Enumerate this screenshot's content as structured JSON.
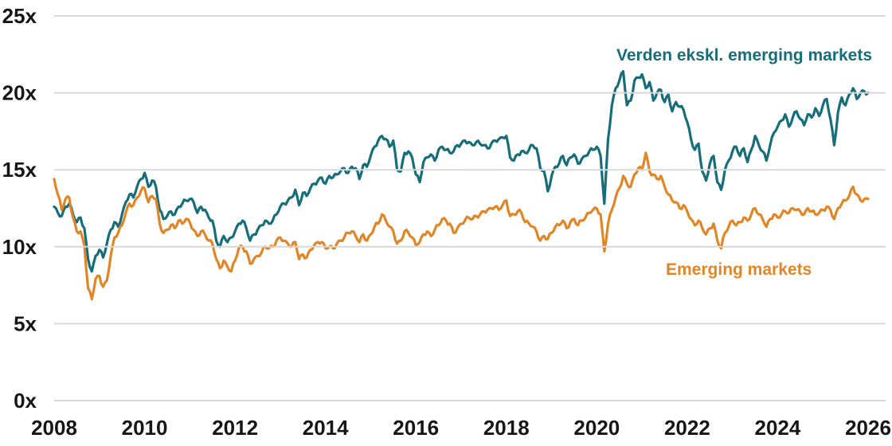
{
  "page": {
    "background": "#FFFFFF"
  },
  "chart_data": {
    "type": "line",
    "title": "",
    "xlabel": "",
    "ylabel": "",
    "grid": {
      "color": "#D8D8D8",
      "drawn_on_top": true
    },
    "axis_label_color": "#161616",
    "x_axis": {
      "ticks": [
        2008,
        2010,
        2012,
        2014,
        2016,
        2018,
        2020,
        2022,
        2024,
        2026
      ]
    },
    "y_axis": {
      "min": 0,
      "max": 25,
      "suffix": "x",
      "ticks": [
        {
          "value": 25,
          "label": "25x"
        },
        {
          "value": 20,
          "label": "20x"
        },
        {
          "value": 15,
          "label": "15x"
        },
        {
          "value": 10,
          "label": "10x"
        },
        {
          "value": 5,
          "label": "5x"
        },
        {
          "value": 0,
          "label": "0x"
        }
      ]
    },
    "x_start_year": 2008,
    "points_per_year": 12,
    "legend_position": "inline-annotations",
    "series": [
      {
        "name": "Verden ekskl. emerging markets",
        "color": "#176E7B",
        "values": [
          12.6,
          12.2,
          12.0,
          12.6,
          12.8,
          12.1,
          11.6,
          11.9,
          11.2,
          9.2,
          8.4,
          9.4,
          9.8,
          9.3,
          10.2,
          11.1,
          11.6,
          11.3,
          12.1,
          12.9,
          13.4,
          13.2,
          13.9,
          14.4,
          14.8,
          13.9,
          14.3,
          13.9,
          12.4,
          11.8,
          12.0,
          12.3,
          12.1,
          12.6,
          12.8,
          13.0,
          13.1,
          12.9,
          12.2,
          12.6,
          12.4,
          11.9,
          11.7,
          10.4,
          10.0,
          10.7,
          10.3,
          10.6,
          11.0,
          11.5,
          11.7,
          11.2,
          10.4,
          10.8,
          11.1,
          11.4,
          11.7,
          11.5,
          11.7,
          12.1,
          12.6,
          12.8,
          13.0,
          13.2,
          13.7,
          12.7,
          13.5,
          13.3,
          13.8,
          14.1,
          14.3,
          14.5,
          14.1,
          14.6,
          14.5,
          14.7,
          14.9,
          15.1,
          14.8,
          15.2,
          15.1,
          14.4,
          15.3,
          15.2,
          15.9,
          16.5,
          16.9,
          17.2,
          17.0,
          16.5,
          16.9,
          15.0,
          14.9,
          16.1,
          16.2,
          15.8,
          14.7,
          14.2,
          15.5,
          15.8,
          16.0,
          15.6,
          16.3,
          16.5,
          16.3,
          16.1,
          16.2,
          16.6,
          16.7,
          16.9,
          16.8,
          16.6,
          16.8,
          16.7,
          16.6,
          16.4,
          16.7,
          16.9,
          17.0,
          17.1,
          17.2,
          15.8,
          15.6,
          16.0,
          16.2,
          16.1,
          16.3,
          16.6,
          16.4,
          15.1,
          14.9,
          13.6,
          14.6,
          15.2,
          15.4,
          15.9,
          15.3,
          15.8,
          16.0,
          15.4,
          15.7,
          15.9,
          16.2,
          16.3,
          16.5,
          15.9,
          12.8,
          17.0,
          19.2,
          20.3,
          20.8,
          21.4,
          19.2,
          19.5,
          20.8,
          21.0,
          21.2,
          20.3,
          20.7,
          19.5,
          20.0,
          20.2,
          19.4,
          19.9,
          18.8,
          19.4,
          19.1,
          18.9,
          18.1,
          17.0,
          16.3,
          16.7,
          14.9,
          14.3,
          15.4,
          15.9,
          14.2,
          13.7,
          15.0,
          15.6,
          16.2,
          16.5,
          15.9,
          16.4,
          15.5,
          16.3,
          17.2,
          16.6,
          16.2,
          15.6,
          16.6,
          17.4,
          17.8,
          18.2,
          18.6,
          17.8,
          18.4,
          18.8,
          18.3,
          17.9,
          18.6,
          18.4,
          19.0,
          18.5,
          19.2,
          19.6,
          18.3,
          16.6,
          18.7,
          19.7,
          19.2,
          19.9,
          20.3,
          19.6,
          20.0,
          20.1,
          20.0
        ]
      },
      {
        "name": "Emerging markets",
        "color": "#E08627",
        "values": [
          14.4,
          13.4,
          12.4,
          13.1,
          13.2,
          11.9,
          11.0,
          11.0,
          10.1,
          7.3,
          6.6,
          7.9,
          8.1,
          7.4,
          7.8,
          9.4,
          10.6,
          10.9,
          11.4,
          12.2,
          12.8,
          12.7,
          13.2,
          13.6,
          13.8,
          12.9,
          13.3,
          13.1,
          11.5,
          10.9,
          11.1,
          11.4,
          11.2,
          11.7,
          11.5,
          11.8,
          11.6,
          11.1,
          10.7,
          11.0,
          10.8,
          10.4,
          10.2,
          9.2,
          8.6,
          9.1,
          8.7,
          8.4,
          9.1,
          9.9,
          10.0,
          9.7,
          8.9,
          9.2,
          9.4,
          9.6,
          10.0,
          9.9,
          10.0,
          10.4,
          10.6,
          10.4,
          10.2,
          10.0,
          10.3,
          9.2,
          9.5,
          9.3,
          9.8,
          10.1,
          10.3,
          10.3,
          9.9,
          10.0,
          9.9,
          10.2,
          10.4,
          10.6,
          10.9,
          11.0,
          10.7,
          10.3,
          10.8,
          10.4,
          10.8,
          11.3,
          11.5,
          12.1,
          11.7,
          11.3,
          11.0,
          10.2,
          10.4,
          11.0,
          10.9,
          10.6,
          10.1,
          10.3,
          10.8,
          11.0,
          10.7,
          11.1,
          11.4,
          11.8,
          11.7,
          11.5,
          10.9,
          11.2,
          11.5,
          11.7,
          11.9,
          11.8,
          12.0,
          12.1,
          12.3,
          12.4,
          12.5,
          12.6,
          12.4,
          12.7,
          13.0,
          12.0,
          12.1,
          12.3,
          12.2,
          11.6,
          11.5,
          11.3,
          11.0,
          10.4,
          10.7,
          10.5,
          10.9,
          11.3,
          11.4,
          11.7,
          11.2,
          11.6,
          11.8,
          11.4,
          11.7,
          11.9,
          12.2,
          12.4,
          12.5,
          12.1,
          9.7,
          11.5,
          12.4,
          13.2,
          13.8,
          14.6,
          14.1,
          13.9,
          14.7,
          15.1,
          15.0,
          16.1,
          14.9,
          14.7,
          14.4,
          14.6,
          13.9,
          13.4,
          13.0,
          12.9,
          12.5,
          12.7,
          12.3,
          11.8,
          11.4,
          11.7,
          11.2,
          10.8,
          11.2,
          11.5,
          10.4,
          9.9,
          10.9,
          11.3,
          11.7,
          11.4,
          11.6,
          11.9,
          11.7,
          12.1,
          12.5,
          12.1,
          11.8,
          11.3,
          11.8,
          12.1,
          11.9,
          12.1,
          12.3,
          12.2,
          12.5,
          12.4,
          12.3,
          12.1,
          12.5,
          12.3,
          12.1,
          12.2,
          12.4,
          12.6,
          12.4,
          11.8,
          12.5,
          12.8,
          13.0,
          13.3,
          13.9,
          13.4,
          13.0,
          13.1,
          13.1
        ]
      }
    ]
  }
}
